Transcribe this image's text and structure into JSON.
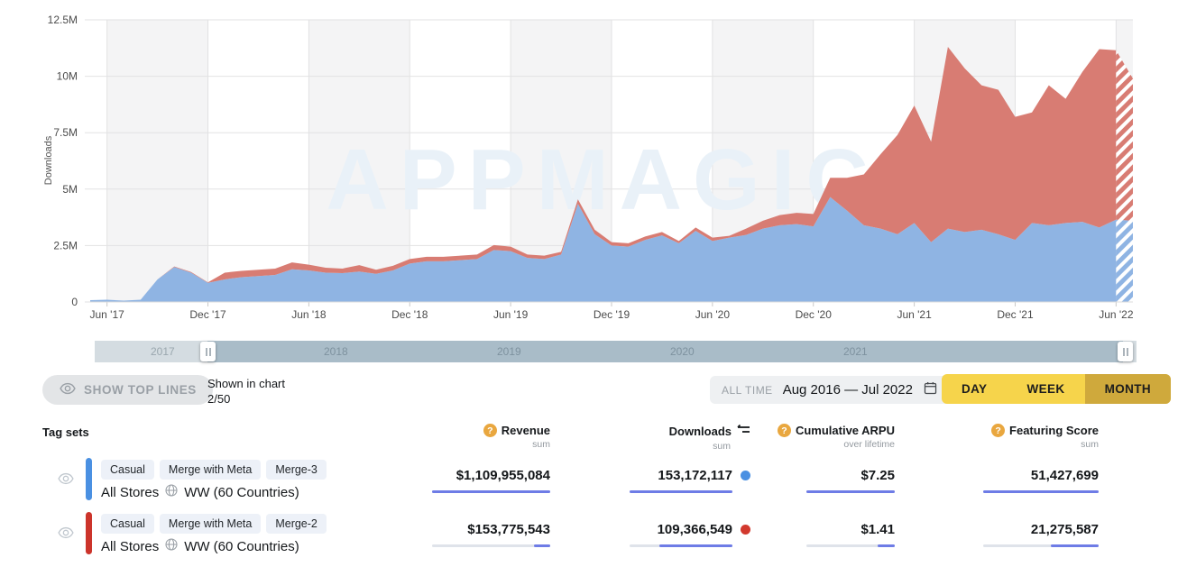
{
  "chart_data": {
    "type": "area",
    "stacked": true,
    "ylabel": "Downloads",
    "watermark": "APPMAGIC",
    "ylim": [
      0,
      12.5
    ],
    "unit": "downloads per month, millions",
    "yticks": [
      "0",
      "2.5M",
      "5M",
      "7.5M",
      "10M",
      "12.5M"
    ],
    "x": [
      "May '17",
      "Jun '17",
      "Jul '17",
      "Aug '17",
      "Sep '17",
      "Oct '17",
      "Nov '17",
      "Dec '17",
      "Jan '18",
      "Feb '18",
      "Mar '18",
      "Apr '18",
      "May '18",
      "Jun '18",
      "Jul '18",
      "Aug '18",
      "Sep '18",
      "Oct '18",
      "Nov '18",
      "Dec '18",
      "Jan '19",
      "Feb '19",
      "Mar '19",
      "Apr '19",
      "May '19",
      "Jun '19",
      "Jul '19",
      "Aug '19",
      "Sep '19",
      "Oct '19",
      "Nov '19",
      "Dec '19",
      "Jan '20",
      "Feb '20",
      "Mar '20",
      "Apr '20",
      "May '20",
      "Jun '20",
      "Jul '20",
      "Aug '20",
      "Sep '20",
      "Oct '20",
      "Nov '20",
      "Dec '20",
      "Jan '21",
      "Feb '21",
      "Mar '21",
      "Apr '21",
      "May '21",
      "Jun '21",
      "Jul '21",
      "Aug '21",
      "Sep '21",
      "Oct '21",
      "Nov '21",
      "Dec '21",
      "Jan '22",
      "Feb '22",
      "Mar '22",
      "Apr '22",
      "May '22",
      "Jun '22",
      "Jul '22"
    ],
    "xtick_indices": [
      1,
      7,
      13,
      19,
      25,
      31,
      37,
      43,
      49,
      55,
      61
    ],
    "xtick_labels": [
      "Jun '17",
      "Dec '17",
      "Jun '18",
      "Dec '18",
      "Jun '19",
      "Dec '19",
      "Jun '20",
      "Dec '20",
      "Jun '21",
      "Dec '21",
      "Jun '22"
    ],
    "series": [
      {
        "name": "Casual / Merge with Meta / Merge-3",
        "color": "#8fb4e3",
        "values": [
          0.08,
          0.1,
          0.06,
          0.1,
          1.0,
          1.55,
          1.3,
          0.85,
          1.0,
          1.1,
          1.15,
          1.2,
          1.45,
          1.4,
          1.3,
          1.28,
          1.35,
          1.25,
          1.4,
          1.7,
          1.8,
          1.8,
          1.85,
          1.9,
          2.3,
          2.25,
          1.95,
          1.9,
          2.1,
          4.35,
          3.0,
          2.5,
          2.45,
          2.75,
          2.95,
          2.6,
          3.15,
          2.7,
          2.85,
          2.97,
          3.25,
          3.4,
          3.45,
          3.35,
          4.65,
          4.05,
          3.4,
          3.25,
          3.0,
          3.5,
          2.65,
          3.25,
          3.1,
          3.2,
          3.0,
          2.75,
          3.5,
          3.4,
          3.5,
          3.55,
          3.3,
          3.65,
          3.6
        ]
      },
      {
        "name": "Casual / Merge with Meta / Merge-2",
        "color": "#d87c73",
        "values": [
          0,
          0,
          0,
          0,
          0,
          0.02,
          0.03,
          0.02,
          0.3,
          0.28,
          0.28,
          0.28,
          0.3,
          0.25,
          0.22,
          0.2,
          0.28,
          0.18,
          0.2,
          0.2,
          0.2,
          0.2,
          0.2,
          0.2,
          0.22,
          0.2,
          0.15,
          0.15,
          0.12,
          0.2,
          0.2,
          0.15,
          0.15,
          0.15,
          0.15,
          0.1,
          0.15,
          0.15,
          0.08,
          0.28,
          0.35,
          0.45,
          0.5,
          0.55,
          0.85,
          1.45,
          2.25,
          3.3,
          4.4,
          5.2,
          4.45,
          8.05,
          7.25,
          6.4,
          6.4,
          5.45,
          4.9,
          6.2,
          5.5,
          6.65,
          7.9,
          7.5,
          6.3
        ]
      }
    ],
    "last_segment_hatched": true,
    "legend_position": "none",
    "grid": true
  },
  "timeline": {
    "years": [
      "2017",
      "2018",
      "2019",
      "2020",
      "2021"
    ]
  },
  "controls": {
    "show_top_lines": "SHOW TOP LINES",
    "shown_in_chart": "Shown in chart",
    "shown_count": "2/50",
    "range_label": "ALL TIME",
    "range_value": "Aug 2016 — Jul 2022",
    "granularity": {
      "day": "DAY",
      "week": "WEEK",
      "month": "MONTH"
    },
    "granularity_selected": "MONTH"
  },
  "table": {
    "tag_sets_label": "Tag sets",
    "columns": [
      {
        "label": "Revenue",
        "sub": "sum",
        "help_icon": true
      },
      {
        "label": "Downloads",
        "sub": "sum",
        "sort_icon": true
      },
      {
        "label": "Cumulative ARPU",
        "sub": "over lifetime",
        "help_icon": true
      },
      {
        "label": "Featuring Score",
        "sub": "sum",
        "help_icon": true
      }
    ],
    "rows": [
      {
        "bar_color": "#4a90e2",
        "dot_color": "#4a90e2",
        "tags": [
          "Casual",
          "Merge with Meta",
          "Merge-3"
        ],
        "stores": "All Stores",
        "region": "WW (60 Countries)",
        "revenue": "$1,109,955,084",
        "downloads": "153,172,117",
        "arpu": "$7.25",
        "featuring_score": "51,427,699",
        "bar_ratios": {
          "revenue": 1,
          "downloads": 1,
          "arpu": 1,
          "featuring": 1
        }
      },
      {
        "bar_color": "#cc342b",
        "dot_color": "#d2392e",
        "tags": [
          "Casual",
          "Merge with Meta",
          "Merge-2"
        ],
        "stores": "All Stores",
        "region": "WW (60 Countries)",
        "revenue": "$153,775,543",
        "downloads": "109,366,549",
        "arpu": "$1.41",
        "featuring_score": "21,275,587",
        "bar_ratios": {
          "revenue": 0.139,
          "downloads": 0.714,
          "arpu": 0.194,
          "featuring": 0.414
        }
      }
    ]
  }
}
